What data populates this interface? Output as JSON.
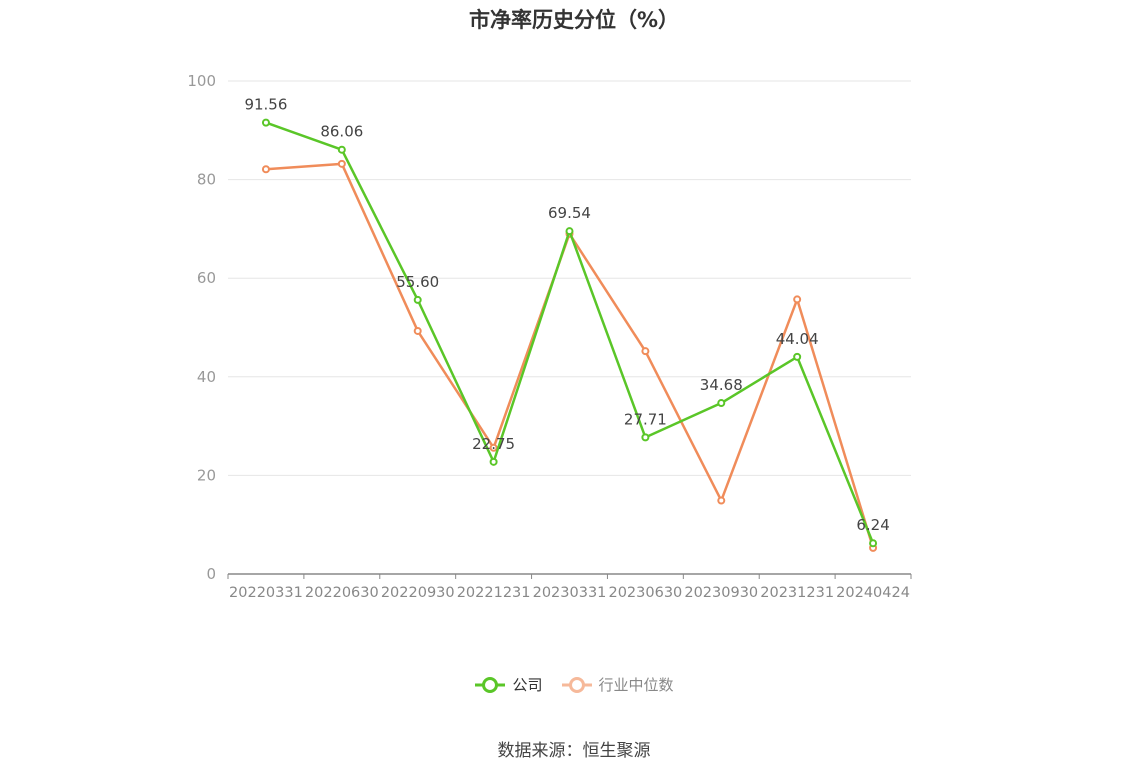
{
  "title": "市净率历史分位（%）",
  "source": "数据来源：恒生聚源",
  "colors": {
    "company": "#5ac628",
    "industry": "#f08c5a",
    "grid": "#e6e6e6",
    "axis": "#888888"
  },
  "chart_data": {
    "type": "line",
    "title": "市净率历史分位（%）",
    "xlabel": "",
    "ylabel": "",
    "ylim": [
      0,
      100
    ],
    "yticks": [
      0,
      20,
      40,
      60,
      80,
      100
    ],
    "grid": true,
    "legend_position": "bottom",
    "categories": [
      "20220331",
      "20220630",
      "20220930",
      "20221231",
      "20230331",
      "20230630",
      "20230930",
      "20231231",
      "20240424"
    ],
    "series": [
      {
        "name": "公司",
        "values": [
          91.56,
          86.06,
          55.6,
          22.75,
          69.54,
          27.71,
          34.68,
          44.04,
          6.24
        ],
        "labels": [
          "91.56",
          "86.06",
          "55.60",
          "22.75",
          "69.54",
          "27.71",
          "34.68",
          "44.04",
          "6.24"
        ]
      },
      {
        "name": "行业中位数",
        "values": [
          82.1,
          83.2,
          49.3,
          25.6,
          69.0,
          45.2,
          14.9,
          55.7,
          5.3
        ]
      }
    ]
  }
}
